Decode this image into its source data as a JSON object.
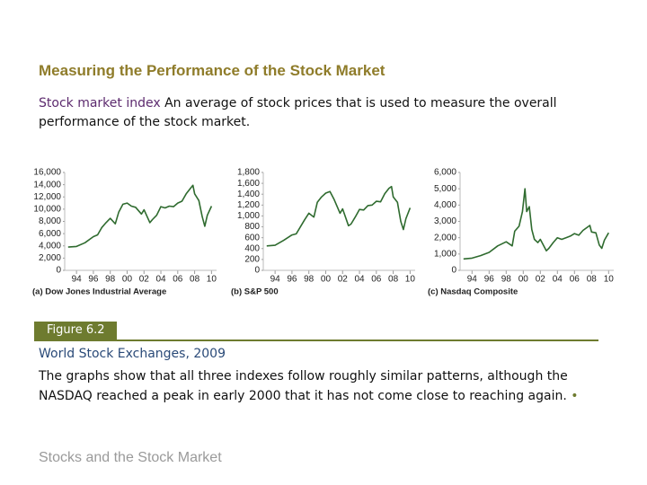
{
  "header": {
    "title": "Measuring the Performance of the Stock Market"
  },
  "definition": {
    "term": "Stock market index",
    "text": "An average of stock prices that is used to measure the overall performance of the stock market."
  },
  "chart_data": [
    {
      "type": "line",
      "caption": "(a) Dow Jones Industrial Average",
      "x": [
        1993,
        1994,
        1995,
        1996,
        1996.5,
        1997,
        1997.5,
        1998,
        1998.6,
        1999,
        1999.5,
        2000,
        2000.5,
        2001,
        2001.7,
        2002,
        2002.7,
        2003,
        2003.5,
        2004,
        2004.5,
        2005,
        2005.5,
        2006,
        2006.5,
        2007,
        2007.5,
        2007.8,
        2008,
        2008.5,
        2008.9,
        2009.2,
        2009.5,
        2010
      ],
      "series": [
        {
          "name": "Dow Jones Industrial Average",
          "color": "#2f6b2f",
          "values": [
            3800,
            3900,
            4500,
            5500,
            5800,
            7000,
            7800,
            8500,
            7600,
            9500,
            10800,
            11000,
            10500,
            10300,
            9200,
            9900,
            7800,
            8300,
            9000,
            10400,
            10200,
            10500,
            10400,
            11000,
            11300,
            12500,
            13400,
            13900,
            12500,
            11400,
            8800,
            7200,
            9000,
            10500
          ]
        }
      ],
      "xlim": [
        1992.6,
        2010.6
      ],
      "xticks": [
        {
          "value": 1994,
          "label": "94"
        },
        {
          "value": 1996,
          "label": "96"
        },
        {
          "value": 1998,
          "label": "98"
        },
        {
          "value": 2000,
          "label": "00"
        },
        {
          "value": 2002,
          "label": "02"
        },
        {
          "value": 2004,
          "label": "04"
        },
        {
          "value": 2006,
          "label": "06"
        },
        {
          "value": 2008,
          "label": "08"
        },
        {
          "value": 2010,
          "label": "10"
        }
      ],
      "ylim": [
        0,
        16000
      ],
      "yticks": [
        0,
        {
          "value": 2000,
          "label": "2,000"
        },
        {
          "value": 4000,
          "label": "4,000"
        },
        {
          "value": 6000,
          "label": "6,000"
        },
        {
          "value": 8000,
          "label": "8,000"
        },
        {
          "value": 10000,
          "label": "10,000"
        },
        {
          "value": 12000,
          "label": "12,000"
        },
        {
          "value": 14000,
          "label": "14,000"
        },
        {
          "value": 16000,
          "label": "16,000"
        }
      ]
    },
    {
      "type": "line",
      "caption": "(b) S&P 500",
      "x": [
        1993,
        1994,
        1995,
        1996,
        1996.5,
        1997,
        1997.5,
        1998,
        1998.6,
        1999,
        1999.5,
        2000,
        2000.5,
        2001,
        2001.7,
        2002,
        2002.7,
        2003,
        2003.5,
        2004,
        2004.5,
        2005,
        2005.5,
        2006,
        2006.5,
        2007,
        2007.5,
        2007.8,
        2008,
        2008.5,
        2008.9,
        2009.2,
        2009.5,
        2010
      ],
      "series": [
        {
          "name": "S&P 500",
          "color": "#2f6b2f",
          "values": [
            450,
            460,
            550,
            650,
            670,
            800,
            930,
            1050,
            980,
            1250,
            1350,
            1420,
            1450,
            1300,
            1050,
            1130,
            820,
            850,
            980,
            1120,
            1110,
            1190,
            1200,
            1270,
            1260,
            1410,
            1510,
            1540,
            1350,
            1250,
            900,
            750,
            950,
            1150
          ]
        }
      ],
      "xlim": [
        1992.6,
        2010.6
      ],
      "xticks": [
        {
          "value": 1994,
          "label": "94"
        },
        {
          "value": 1996,
          "label": "96"
        },
        {
          "value": 1998,
          "label": "98"
        },
        {
          "value": 2000,
          "label": "00"
        },
        {
          "value": 2002,
          "label": "02"
        },
        {
          "value": 2004,
          "label": "04"
        },
        {
          "value": 2006,
          "label": "06"
        },
        {
          "value": 2008,
          "label": "08"
        },
        {
          "value": 2010,
          "label": "10"
        }
      ],
      "ylim": [
        0,
        1800
      ],
      "yticks": [
        0,
        200,
        400,
        600,
        800,
        {
          "value": 1000,
          "label": "1,000"
        },
        {
          "value": 1200,
          "label": "1,200"
        },
        {
          "value": 1400,
          "label": "1,400"
        },
        {
          "value": 1600,
          "label": "1,600"
        },
        {
          "value": 1800,
          "label": "1,800"
        }
      ]
    },
    {
      "type": "line",
      "caption": "(c) Nasdaq Composite",
      "x": [
        1993,
        1994,
        1995,
        1996,
        1997,
        1998,
        1998.7,
        1999,
        1999.5,
        1999.9,
        2000.2,
        2000.4,
        2000.7,
        2001,
        2001.3,
        2001.7,
        2002,
        2002.7,
        2003,
        2003.5,
        2004,
        2004.5,
        2005,
        2005.5,
        2006,
        2006.5,
        2007,
        2007.8,
        2008,
        2008.5,
        2008.9,
        2009.2,
        2009.5,
        2010
      ],
      "series": [
        {
          "name": "Nasdaq Composite",
          "color": "#2f6b2f",
          "values": [
            700,
            750,
            900,
            1100,
            1500,
            1750,
            1500,
            2400,
            2700,
            3600,
            5000,
            3600,
            3900,
            2500,
            1900,
            1700,
            1900,
            1200,
            1350,
            1700,
            2000,
            1900,
            2000,
            2100,
            2250,
            2150,
            2450,
            2750,
            2350,
            2300,
            1550,
            1350,
            1850,
            2300
          ]
        }
      ],
      "xlim": [
        1992.6,
        2010.6
      ],
      "xticks": [
        {
          "value": 1994,
          "label": "94"
        },
        {
          "value": 1996,
          "label": "96"
        },
        {
          "value": 1998,
          "label": "98"
        },
        {
          "value": 2000,
          "label": "00"
        },
        {
          "value": 2002,
          "label": "02"
        },
        {
          "value": 2004,
          "label": "04"
        },
        {
          "value": 2006,
          "label": "06"
        },
        {
          "value": 2008,
          "label": "08"
        },
        {
          "value": 2010,
          "label": "10"
        }
      ],
      "ylim": [
        0,
        6000
      ],
      "yticks": [
        0,
        {
          "value": 1000,
          "label": "1,000"
        },
        {
          "value": 2000,
          "label": "2,000"
        },
        {
          "value": 3000,
          "label": "3,000"
        },
        {
          "value": 4000,
          "label": "4,000"
        },
        {
          "value": 5000,
          "label": "5,000"
        },
        {
          "value": 6000,
          "label": "6,000"
        }
      ]
    }
  ],
  "figure": {
    "label": "Figure 6.2",
    "title": "World Stock Exchanges, 2009",
    "caption": "The graphs show that all three indexes follow roughly similar patterns, although the NASDAQ reached a peak in early 2000 that it has not come close to reaching again."
  },
  "footer": "Stocks and the Stock Market"
}
